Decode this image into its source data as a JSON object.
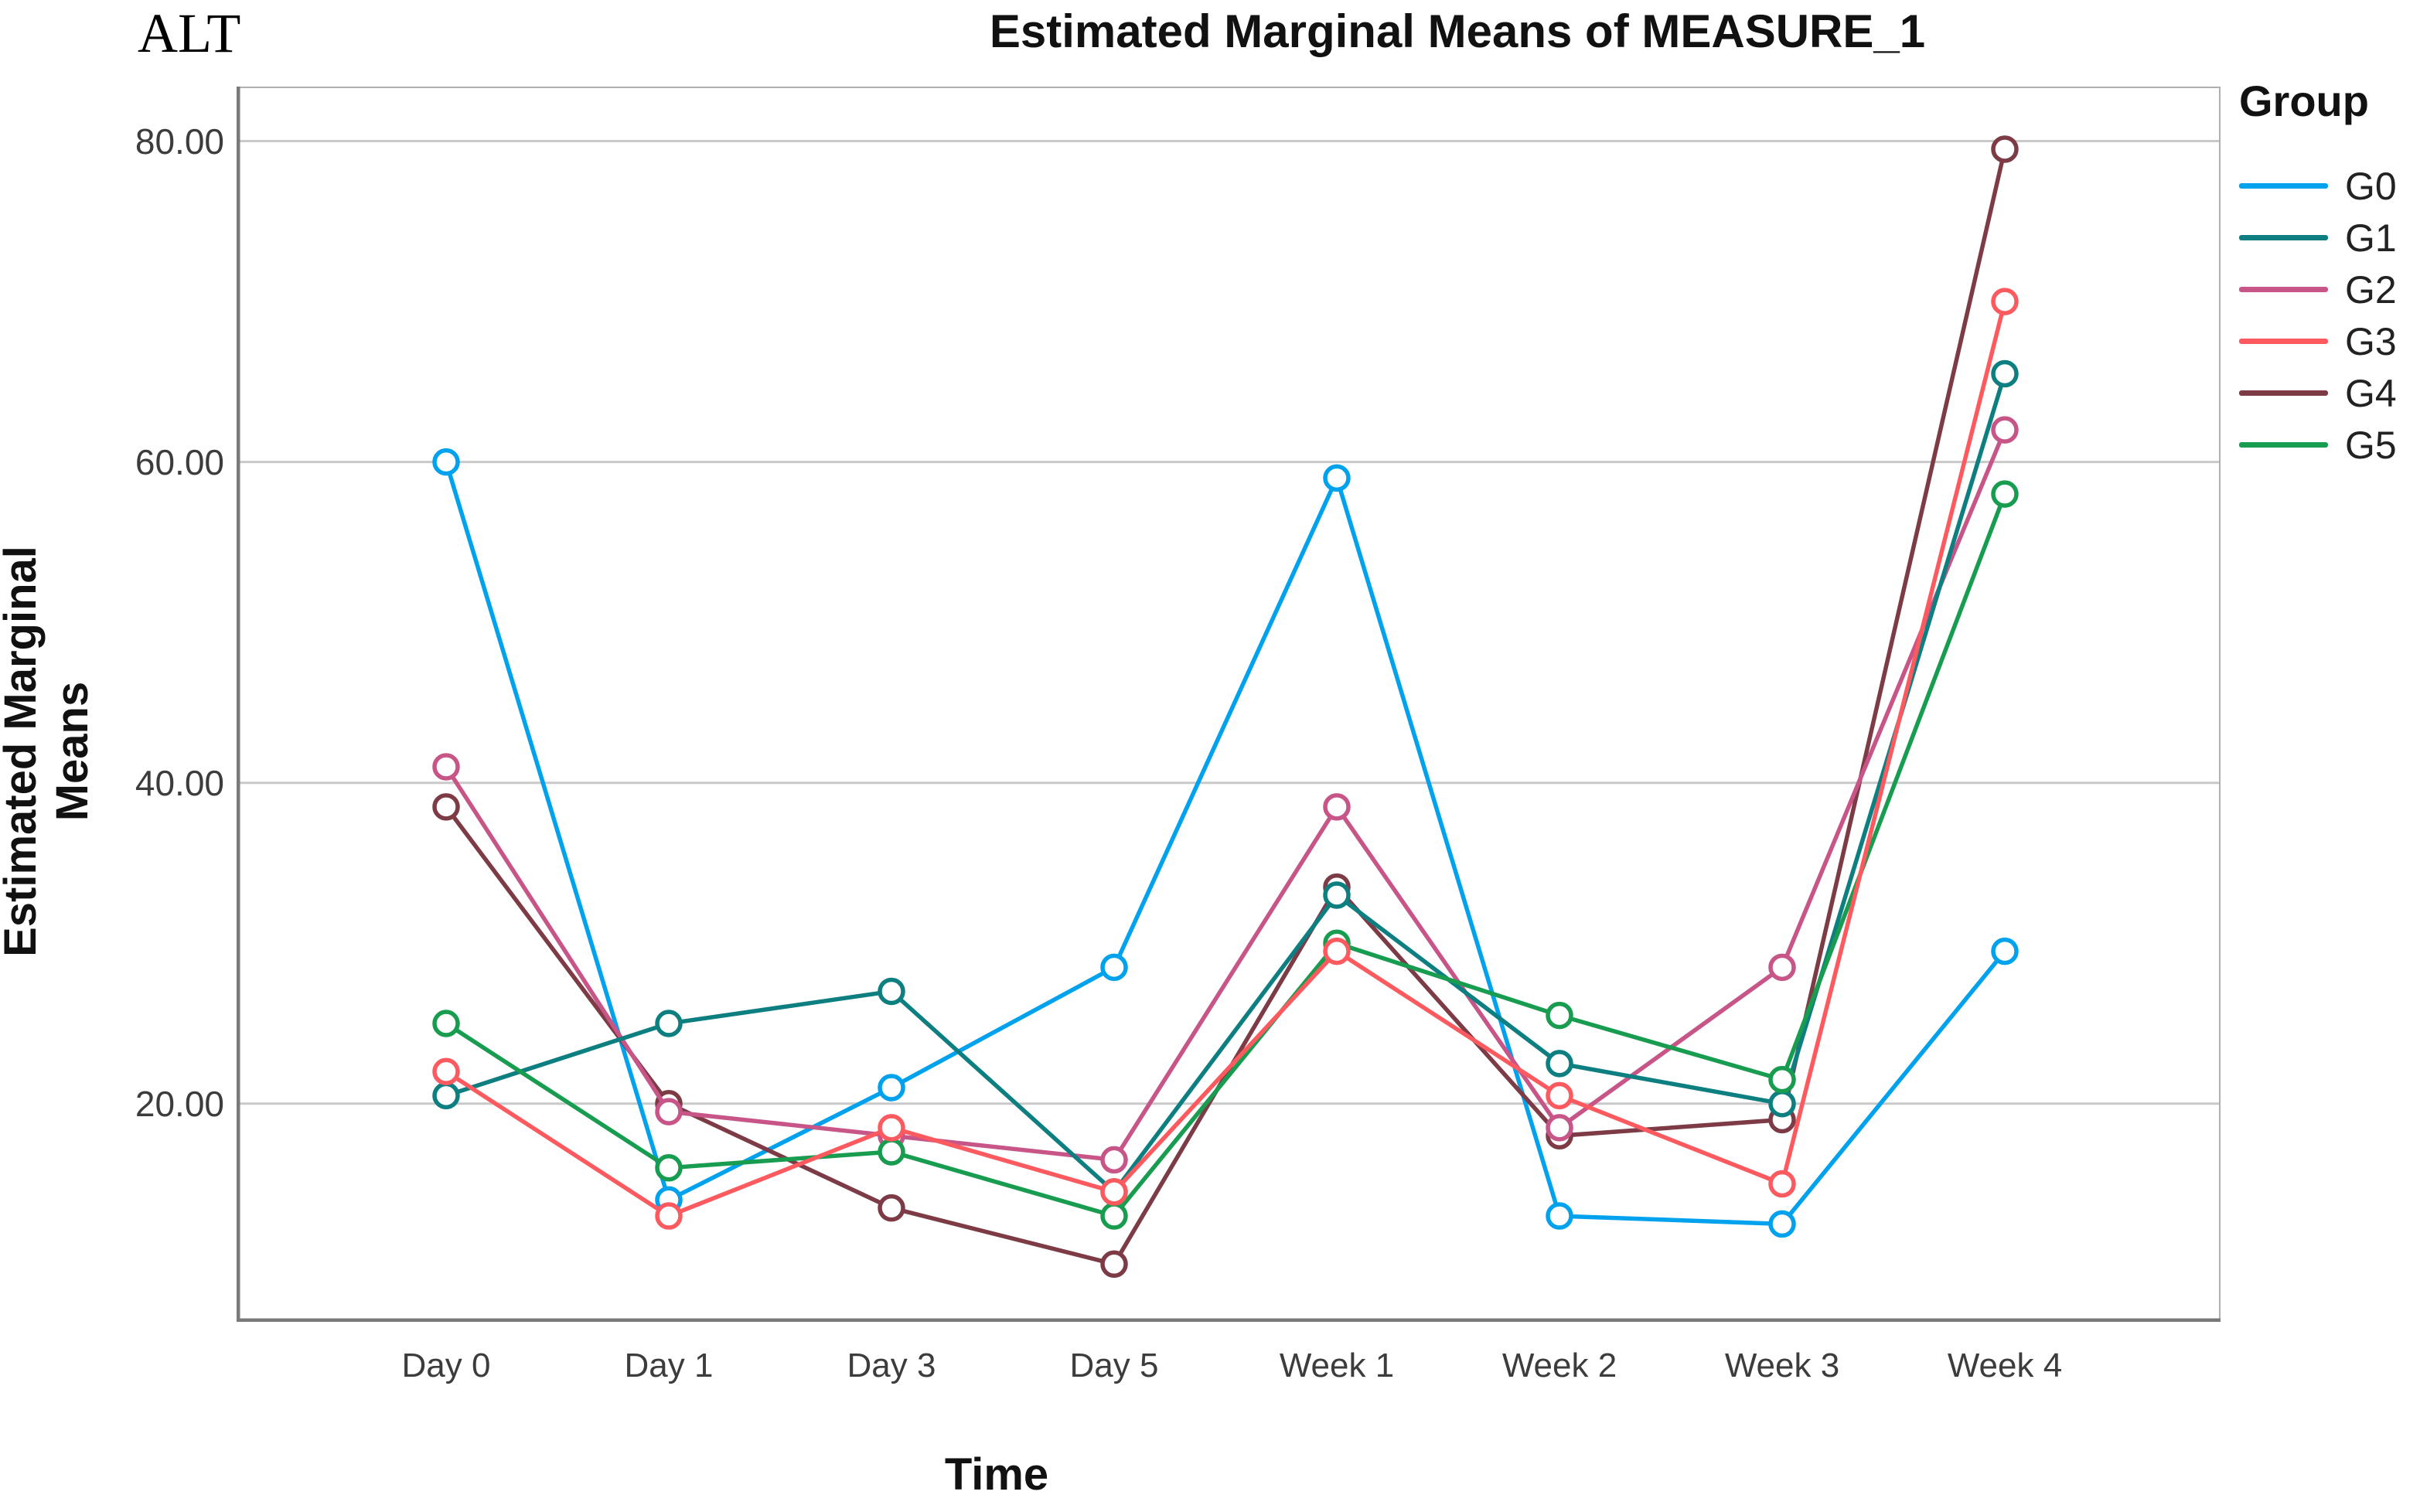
{
  "annotation": "ALT",
  "title": "Estimated Marginal Means of MEASURE_1",
  "axes": {
    "y_title": "Estimated Marginal Means",
    "x_title": "Time",
    "y_tick_labels": [
      "80.00",
      "60.00",
      "40.00",
      "20.00"
    ],
    "x_tick_labels": [
      "Day 0",
      "Day 1",
      "Day 3",
      "Day 5",
      "Week 1",
      "Week 2",
      "Week 3",
      "Week 4"
    ]
  },
  "legend": {
    "title": "Group",
    "entries": [
      "G0",
      "G1",
      "G2",
      "G3",
      "G4",
      "G5"
    ]
  },
  "colors": {
    "frame": "#7a7a7a",
    "grid": "#c9c9c9",
    "tick_text": "#3c3c3c"
  },
  "chart_data": {
    "type": "line",
    "title": "Estimated Marginal Means of MEASURE_1",
    "xlabel": "Time",
    "ylabel": "Estimated Marginal Means",
    "x": [
      "Day 0",
      "Day 1",
      "Day 3",
      "Day 5",
      "Week 1",
      "Week 2",
      "Week 3",
      "Week 4"
    ],
    "series": [
      {
        "name": "G0",
        "color": "#00A1ED",
        "values": [
          60.0,
          14.0,
          21.0,
          28.5,
          59.0,
          13.0,
          12.5,
          29.5
        ]
      },
      {
        "name": "G1",
        "color": "#0E7F80",
        "values": [
          20.5,
          25.0,
          27.0,
          14.5,
          33.0,
          22.5,
          20.0,
          65.5
        ]
      },
      {
        "name": "G2",
        "color": "#C75587",
        "values": [
          41.0,
          19.5,
          18.0,
          16.5,
          38.5,
          18.5,
          28.5,
          62.0
        ]
      },
      {
        "name": "G3",
        "color": "#FC5A5F",
        "values": [
          22.0,
          13.0,
          18.5,
          14.5,
          29.5,
          20.5,
          15.0,
          70.0
        ]
      },
      {
        "name": "G4",
        "color": "#7D3B46",
        "values": [
          38.5,
          20.0,
          13.5,
          10.0,
          33.5,
          18.0,
          19.0,
          79.5
        ]
      },
      {
        "name": "G5",
        "color": "#189C50",
        "values": [
          25.0,
          16.0,
          17.0,
          13.0,
          30.0,
          25.5,
          21.5,
          58.0
        ]
      }
    ],
    "ylim": [
      6.4,
      83.4
    ],
    "y_gridlines": [
      20,
      40,
      60,
      80
    ],
    "grid": "horizontal",
    "legend_position": "right",
    "marker": "open-circle"
  }
}
